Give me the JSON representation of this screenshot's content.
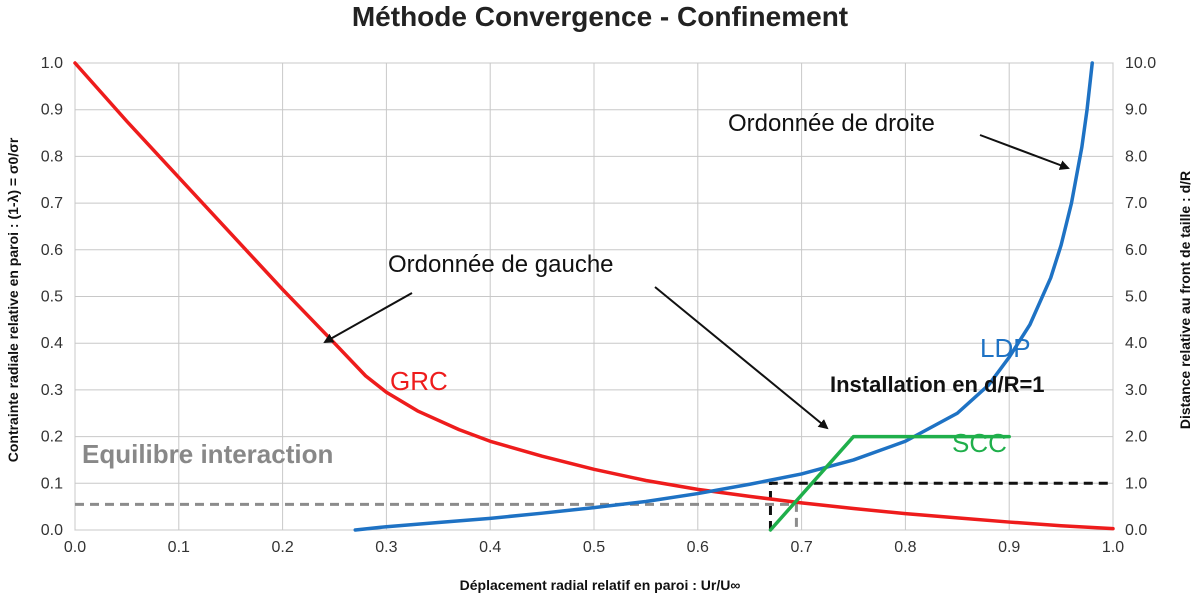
{
  "chart_data": {
    "type": "line",
    "title": "Méthode Convergence - Confinement",
    "xlabel": "Déplacement radial relatif en paroi : Ur/U∞",
    "ylabel_left": "Contrainte radiale relative en paroi : (1-λ) = σ0/σr",
    "ylabel_right": "Distance relative au front de taille : d/R",
    "xlim": [
      0,
      1
    ],
    "ylim_left": [
      0,
      1
    ],
    "ylim_right": [
      0,
      10
    ],
    "grid": true,
    "x_ticks": [
      "0.0",
      "0.1",
      "0.2",
      "0.3",
      "0.4",
      "0.5",
      "0.6",
      "0.7",
      "0.8",
      "0.9",
      "1.0"
    ],
    "y_ticks_left": [
      "0.0",
      "0.1",
      "0.2",
      "0.3",
      "0.4",
      "0.5",
      "0.6",
      "0.7",
      "0.8",
      "0.9",
      "1.0"
    ],
    "y_ticks_right": [
      "0.0",
      "1.0",
      "2.0",
      "3.0",
      "4.0",
      "5.0",
      "6.0",
      "7.0",
      "8.0",
      "9.0",
      "10.0"
    ],
    "series": [
      {
        "name": "GRC",
        "axis": "left",
        "color": "#ee1c1c",
        "x": [
          0.0,
          0.05,
          0.1,
          0.15,
          0.2,
          0.25,
          0.28,
          0.3,
          0.33,
          0.37,
          0.4,
          0.45,
          0.5,
          0.55,
          0.6,
          0.65,
          0.7,
          0.75,
          0.8,
          0.85,
          0.9,
          0.95,
          1.0
        ],
        "y": [
          1.0,
          0.875,
          0.755,
          0.635,
          0.515,
          0.4,
          0.33,
          0.295,
          0.255,
          0.215,
          0.19,
          0.158,
          0.13,
          0.106,
          0.087,
          0.072,
          0.058,
          0.046,
          0.035,
          0.026,
          0.017,
          0.009,
          0.003
        ]
      },
      {
        "name": "LDP",
        "axis": "right",
        "color": "#1e72c4",
        "x": [
          0.27,
          0.3,
          0.35,
          0.4,
          0.45,
          0.5,
          0.55,
          0.6,
          0.65,
          0.7,
          0.75,
          0.8,
          0.85,
          0.88,
          0.9,
          0.92,
          0.94,
          0.95,
          0.96,
          0.97,
          0.975,
          0.98
        ],
        "y": [
          0.0,
          0.07,
          0.16,
          0.25,
          0.36,
          0.48,
          0.61,
          0.78,
          0.98,
          1.2,
          1.5,
          1.9,
          2.5,
          3.1,
          3.7,
          4.4,
          5.4,
          6.1,
          7.0,
          8.2,
          9.0,
          10.0
        ]
      },
      {
        "name": "SCC",
        "axis": "left",
        "color": "#1faf4b",
        "x": [
          0.67,
          0.75,
          0.9
        ],
        "y": [
          0.0,
          0.2,
          0.2
        ]
      }
    ],
    "annotations": [
      {
        "text": "Ordonnée de droite"
      },
      {
        "text": "Ordonnée de gauche"
      },
      {
        "text": "Installation en d/R=1"
      },
      {
        "text": "Equilibre interaction"
      }
    ],
    "reference_lines": {
      "installation": {
        "x": 0.67,
        "y_right": 1.0
      },
      "equilibrium": {
        "x": 0.695,
        "y_left": 0.055
      }
    }
  }
}
